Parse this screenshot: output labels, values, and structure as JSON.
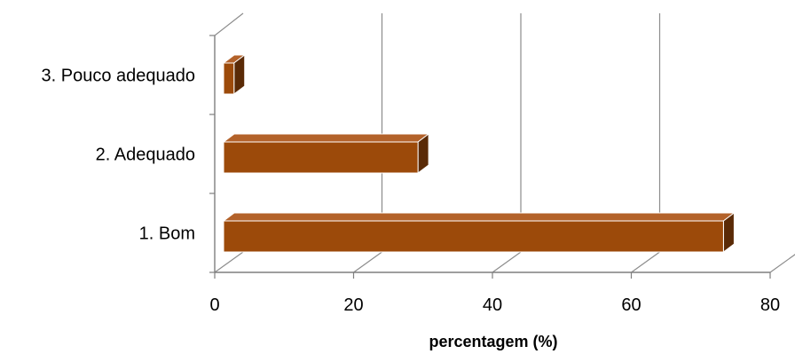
{
  "chart_data": {
    "type": "bar",
    "orientation": "horizontal",
    "style": "3d",
    "categories": [
      "1. Bom",
      "2. Adequado",
      "3. Pouco adequado"
    ],
    "values": [
      72,
      28,
      1.5
    ],
    "xlabel": "percentagem (%)",
    "ylabel": "",
    "xlim": [
      0,
      80
    ],
    "xticks": [
      "0",
      "20",
      "40",
      "60",
      "80"
    ],
    "grid": "vertical",
    "legend": "none",
    "colors": {
      "bar": "#9C4A0A",
      "bar_top": "#B3622A",
      "bar_side": "#5A2A06",
      "grid": "#8C8C8C",
      "axis": "#7F7F7F"
    }
  }
}
